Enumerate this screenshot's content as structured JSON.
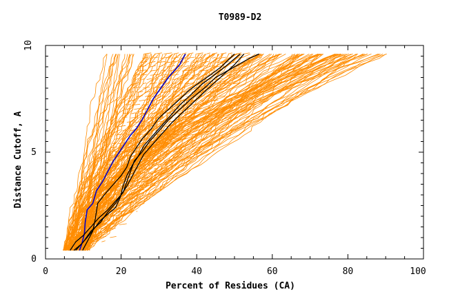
{
  "chart_data": {
    "type": "line",
    "title": "T0989-D2",
    "xlabel": "Percent of Residues (CA)",
    "ylabel": "Distance Cutoff, A",
    "xlim": [
      0,
      100
    ],
    "ylim": [
      0,
      10
    ],
    "x_ticks": [
      "0",
      "20",
      "40",
      "60",
      "80",
      "100"
    ],
    "y_ticks": [
      "0",
      "5",
      "10"
    ],
    "grid": false,
    "colors": {
      "background_models": "#ff8c00",
      "highlight_blue": "#0000cc",
      "highlight_black": "#000000"
    },
    "series": [
      {
        "color": "#0000cc",
        "points": [
          [
            9.0,
            0.4
          ],
          [
            9.6,
            0.7
          ],
          [
            10.3,
            1.2
          ],
          [
            10.5,
            1.7
          ],
          [
            11.0,
            2.3
          ],
          [
            12.5,
            2.6
          ],
          [
            13.5,
            3.2
          ],
          [
            15.0,
            3.6
          ],
          [
            16.5,
            4.1
          ],
          [
            18.0,
            4.6
          ],
          [
            19.5,
            5.0
          ],
          [
            21.0,
            5.4
          ],
          [
            22.5,
            5.8
          ],
          [
            24.0,
            6.1
          ],
          [
            25.5,
            6.5
          ],
          [
            27.0,
            7.0
          ],
          [
            28.5,
            7.5
          ],
          [
            30.5,
            8.0
          ],
          [
            32.5,
            8.5
          ],
          [
            34.0,
            8.8
          ],
          [
            35.5,
            9.1
          ],
          [
            37.0,
            9.6
          ]
        ]
      },
      {
        "color": "#000000",
        "points": [
          [
            9.8,
            0.4
          ],
          [
            11.0,
            0.8
          ],
          [
            12.5,
            1.3
          ],
          [
            13.2,
            1.9
          ],
          [
            13.8,
            2.6
          ],
          [
            16.0,
            3.1
          ],
          [
            18.0,
            3.5
          ],
          [
            20.0,
            3.9
          ],
          [
            21.5,
            4.3
          ],
          [
            22.5,
            4.8
          ],
          [
            24.0,
            5.2
          ],
          [
            25.5,
            5.6
          ],
          [
            28.0,
            6.1
          ],
          [
            30.0,
            6.6
          ],
          [
            32.5,
            7.0
          ],
          [
            35.0,
            7.4
          ],
          [
            38.0,
            7.9
          ],
          [
            41.0,
            8.3
          ],
          [
            43.5,
            8.6
          ],
          [
            46.5,
            9.0
          ],
          [
            50.0,
            9.6
          ]
        ]
      },
      {
        "color": "#000000",
        "points": [
          [
            7.5,
            0.4
          ],
          [
            9.5,
            0.7
          ],
          [
            11.0,
            1.0
          ],
          [
            12.8,
            1.4
          ],
          [
            14.5,
            1.8
          ],
          [
            16.5,
            2.1
          ],
          [
            18.5,
            2.4
          ],
          [
            19.8,
            2.9
          ],
          [
            20.5,
            3.4
          ],
          [
            21.5,
            3.9
          ],
          [
            23.0,
            4.4
          ],
          [
            24.5,
            4.8
          ],
          [
            26.0,
            5.3
          ],
          [
            28.0,
            5.7
          ],
          [
            30.5,
            6.2
          ],
          [
            33.0,
            6.7
          ],
          [
            35.5,
            7.2
          ],
          [
            38.5,
            7.7
          ],
          [
            41.5,
            8.2
          ],
          [
            44.5,
            8.6
          ],
          [
            47.5,
            9.0
          ],
          [
            51.5,
            9.6
          ]
        ]
      },
      {
        "color": "#000000",
        "points": [
          [
            6.5,
            0.4
          ],
          [
            8.0,
            0.8
          ],
          [
            10.0,
            1.1
          ],
          [
            12.0,
            1.5
          ],
          [
            14.0,
            1.9
          ],
          [
            16.5,
            2.3
          ],
          [
            18.5,
            2.7
          ],
          [
            20.5,
            3.1
          ],
          [
            21.5,
            3.6
          ],
          [
            22.5,
            4.1
          ],
          [
            23.5,
            4.6
          ],
          [
            25.5,
            5.0
          ],
          [
            27.5,
            5.5
          ],
          [
            30.0,
            6.0
          ],
          [
            32.5,
            6.5
          ],
          [
            35.5,
            7.0
          ],
          [
            38.5,
            7.5
          ],
          [
            42.0,
            8.0
          ],
          [
            45.0,
            8.5
          ],
          [
            48.0,
            8.8
          ],
          [
            51.0,
            9.1
          ],
          [
            54.0,
            9.4
          ],
          [
            56.5,
            9.6
          ]
        ]
      },
      {
        "color": "#000000",
        "points": [
          [
            8.0,
            0.4
          ],
          [
            10.0,
            0.8
          ],
          [
            12.0,
            1.3
          ],
          [
            14.5,
            1.7
          ],
          [
            16.5,
            2.2
          ],
          [
            18.5,
            2.6
          ],
          [
            20.0,
            3.0
          ],
          [
            21.5,
            3.4
          ],
          [
            23.0,
            3.9
          ],
          [
            24.5,
            4.4
          ],
          [
            26.0,
            4.9
          ],
          [
            28.5,
            5.4
          ],
          [
            31.0,
            5.9
          ],
          [
            33.5,
            6.4
          ],
          [
            36.5,
            6.9
          ],
          [
            39.5,
            7.4
          ],
          [
            42.5,
            7.9
          ],
          [
            45.0,
            8.3
          ],
          [
            47.5,
            8.7
          ],
          [
            50.0,
            9.1
          ],
          [
            52.5,
            9.6
          ]
        ]
      }
    ]
  }
}
